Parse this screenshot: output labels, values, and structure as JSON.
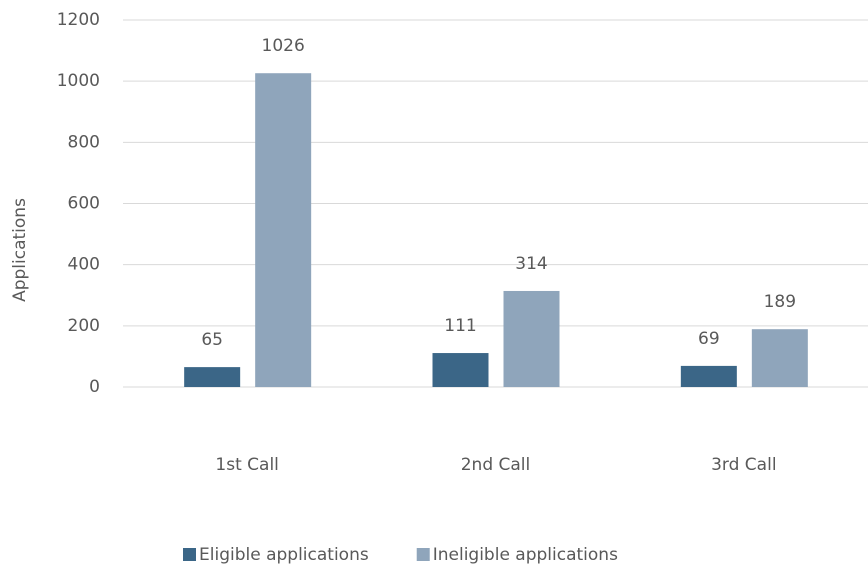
{
  "chart_data": {
    "type": "bar",
    "y_label": "Applications",
    "categories": [
      "1st Call",
      "2nd Call",
      "3rd Call"
    ],
    "series": [
      {
        "name": "Eligible applications",
        "color": "#3b6687",
        "values": [
          65,
          111,
          69
        ]
      },
      {
        "name": "Ineligible applications",
        "color": "#8fa5bb",
        "values": [
          1026,
          314,
          189
        ]
      }
    ],
    "ylim": [
      0,
      1200
    ],
    "yticks": [
      0,
      200,
      400,
      600,
      800,
      1000,
      1200
    ],
    "grid": true,
    "legend": "bottom"
  }
}
